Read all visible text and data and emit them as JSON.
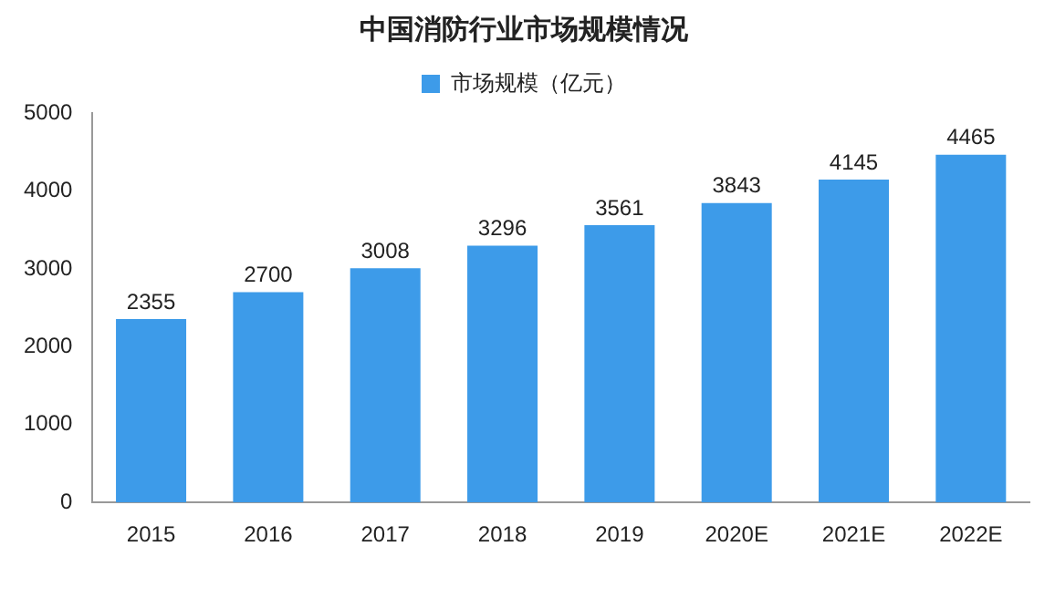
{
  "chart_data": {
    "type": "bar",
    "title": "中国消防行业市场规模情况",
    "categories": [
      "2015",
      "2016",
      "2017",
      "2018",
      "2019",
      "2020E",
      "2021E",
      "2022E"
    ],
    "series": [
      {
        "name": "市场规模（亿元）",
        "color": "#3d9be9",
        "values": [
          2355,
          2700,
          3008,
          3296,
          3561,
          3843,
          4145,
          4465
        ]
      }
    ],
    "ylim": [
      0,
      5000
    ],
    "yticks": [
      0,
      1000,
      2000,
      3000,
      4000,
      5000
    ],
    "grid": false,
    "legend": "top",
    "data_labels": true
  }
}
